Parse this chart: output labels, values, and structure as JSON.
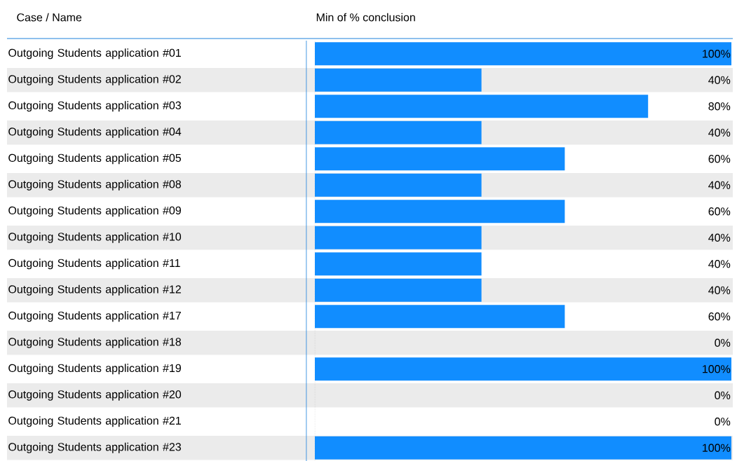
{
  "chart_data": {
    "type": "bar",
    "orientation": "horizontal",
    "ylabel": "Case / Name",
    "xlabel": "Min of % conclusion",
    "categories": [
      "Outgoing Students application #01",
      "Outgoing Students application #02",
      "Outgoing Students application #03",
      "Outgoing Students application #04",
      "Outgoing Students application #05",
      "Outgoing Students application #08",
      "Outgoing Students application #09",
      "Outgoing Students application #10",
      "Outgoing Students application #11",
      "Outgoing Students application #12",
      "Outgoing Students application #17",
      "Outgoing Students application #18",
      "Outgoing Students application #19",
      "Outgoing Students application #20",
      "Outgoing Students application #21",
      "Outgoing Students application #23"
    ],
    "values": [
      100,
      40,
      80,
      40,
      60,
      40,
      60,
      40,
      40,
      40,
      60,
      0,
      100,
      0,
      0,
      100
    ],
    "value_labels": [
      "100%",
      "40%",
      "80%",
      "40%",
      "60%",
      "40%",
      "60%",
      "40%",
      "40%",
      "40%",
      "60%",
      "0%",
      "100%",
      "0%",
      "0%",
      "100%"
    ],
    "color": "#118dff",
    "xlim": [
      0,
      100
    ],
    "tick_labels": "y"
  }
}
